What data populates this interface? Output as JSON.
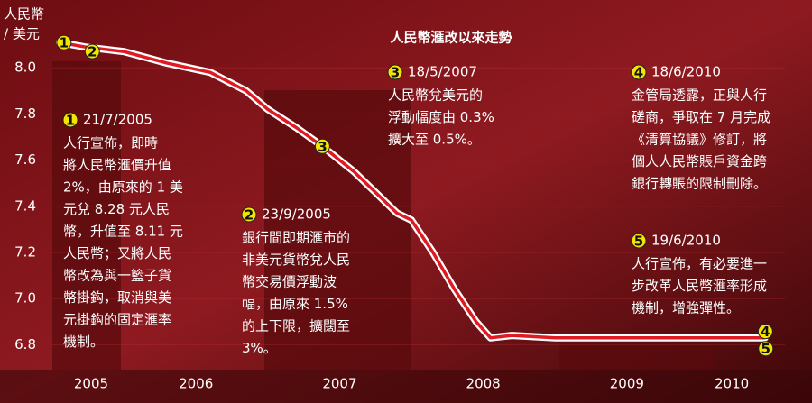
{
  "chart_data": {
    "type": "line",
    "title": "人民幣滙改以來走勢",
    "y_label": [
      "人民幣",
      "/ 美元"
    ],
    "x": [
      2005.55,
      2005.73,
      2006.0,
      2006.3,
      2006.6,
      2006.85,
      2007.0,
      2007.2,
      2007.38,
      2007.6,
      2007.9,
      2008.0,
      2008.15,
      2008.3,
      2008.45,
      2008.55,
      2008.7,
      2009.0,
      2009.3,
      2009.6,
      2009.9,
      2010.2,
      2010.46
    ],
    "series": [
      {
        "name": "人民幣/美元",
        "color": "#e01a22",
        "values": [
          8.11,
          8.09,
          8.07,
          8.02,
          7.98,
          7.9,
          7.82,
          7.74,
          7.66,
          7.55,
          7.37,
          7.34,
          7.2,
          7.04,
          6.9,
          6.83,
          6.84,
          6.83,
          6.83,
          6.83,
          6.83,
          6.83,
          6.83
        ]
      }
    ],
    "xlim": [
      2005.5,
      2010.6
    ],
    "xticks": [
      {
        "value": 2005.77,
        "label": "2005"
      },
      {
        "value": 2006.5,
        "label": "2006"
      },
      {
        "value": 2007.5,
        "label": "2007"
      },
      {
        "value": 2008.5,
        "label": "2008"
      },
      {
        "value": 2009.5,
        "label": "2009"
      },
      {
        "value": 2010.23,
        "label": "2010"
      }
    ],
    "ylim": [
      6.7,
      8.2
    ],
    "yticks": [
      {
        "value": 6.8,
        "label": "6.8"
      },
      {
        "value": 7.0,
        "label": "7.0"
      },
      {
        "value": 7.2,
        "label": "7.2"
      },
      {
        "value": 7.4,
        "label": "7.4"
      },
      {
        "value": 7.6,
        "label": "7.6"
      },
      {
        "value": 7.8,
        "label": "7.8"
      },
      {
        "value": 8.0,
        "label": "8.0"
      }
    ],
    "grid": true,
    "annotations": [
      {
        "marker": 1,
        "date": "21/7/2005",
        "lines": [
          "人行宣佈，即時",
          "將人民幣滙價升值",
          "2%，由原來的 1 美",
          "元兌 8.28 元人民",
          "幣，升值至 8.11 元",
          "人民幣；又將人民",
          "幣改為與一籃子貨",
          "幣掛鈎，取消與美",
          "元掛鈎的固定滙率",
          "機制。"
        ]
      },
      {
        "marker": 2,
        "date": "23/9/2005",
        "lines": [
          "銀行間即期滙市的",
          "非美元貨幣兌人民",
          "幣交易價浮動波",
          "幅，由原來 1.5%",
          "的上下限，擴闊至",
          "3%。"
        ]
      },
      {
        "marker": 3,
        "date": "18/5/2007",
        "lines": [
          "人民幣兌美元的",
          "浮動幅度由 0.3%",
          "擴大至 0.5%。"
        ]
      },
      {
        "marker": 4,
        "date": "18/6/2010",
        "lines": [
          "金管局透露，正與人行",
          "磋商，爭取在 7 月完成",
          "《清算協議》修訂，將",
          "個人人民幣賬戶資金跨",
          "銀行轉賬的限制刪除。"
        ]
      },
      {
        "marker": 5,
        "date": "19/6/2010",
        "lines": [
          "人行宣佈，有必要進一",
          "步改革人民幣滙率形成",
          "機制，增強彈性。"
        ]
      }
    ]
  }
}
